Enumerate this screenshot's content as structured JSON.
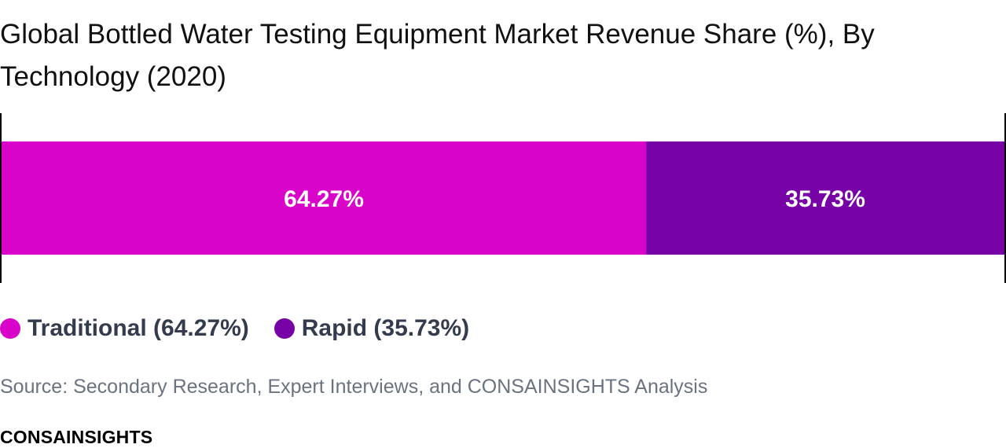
{
  "chart_data": {
    "type": "bar",
    "orientation": "horizontal-stacked-100",
    "title": "Global Bottled Water Testing Equipment Market Revenue Share (%), By Technology (2020)",
    "unit": "%",
    "xlim": [
      0,
      100
    ],
    "grid": false,
    "legend_position": "bottom-left",
    "series": [
      {
        "name": "Traditional",
        "value": 64.27,
        "label": "64.27%",
        "legend_label": "Traditional (64.27%)",
        "color": "#d904c9"
      },
      {
        "name": "Rapid",
        "value": 35.73,
        "label": "35.73%",
        "legend_label": "Rapid (35.73%)",
        "color": "#7703a6"
      }
    ]
  },
  "source": "Source: Secondary Research, Expert Interviews, and CONSAINSIGHTS Analysis",
  "brand": "CONSAINSIGHTS",
  "colors": {
    "traditional": "#d904c9",
    "rapid": "#7703a6",
    "bar_label": "#ffffff",
    "legend_text": "#333b4d",
    "source_text": "#6b7280"
  }
}
